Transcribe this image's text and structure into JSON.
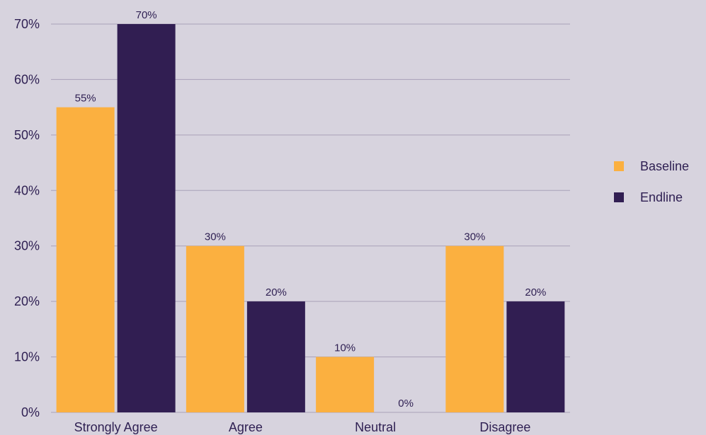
{
  "chart_data": {
    "type": "bar",
    "categories": [
      "Strongly Agree",
      "Agree",
      "Neutral",
      "Disagree"
    ],
    "series": [
      {
        "name": "Baseline",
        "values": [
          55,
          30,
          10,
          30
        ],
        "color": "#fbb040"
      },
      {
        "name": "Endline",
        "values": [
          70,
          20,
          0,
          20
        ],
        "color": "#311e52"
      }
    ],
    "value_suffix": "%",
    "ylim": [
      0,
      70
    ],
    "yticks": [
      0,
      10,
      20,
      30,
      40,
      50,
      60,
      70
    ],
    "ytick_labels": [
      "0%",
      "10%",
      "20%",
      "30%",
      "40%",
      "50%",
      "60%",
      "70%"
    ],
    "grid": true,
    "legend_position": "right",
    "gridline_color": "#a8a1b8",
    "background_color": "#d7d3de"
  }
}
